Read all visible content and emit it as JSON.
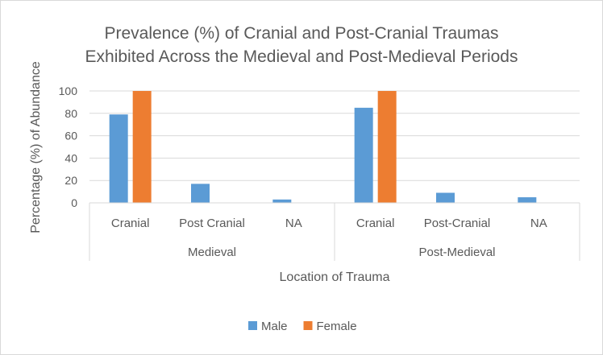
{
  "chart_data": {
    "type": "bar",
    "title_lines": [
      "Prevalence (%) of Cranial and Post-Cranial Traumas",
      "Exhibited Across the Medieval and Post-Medieval Periods"
    ],
    "xlabel": "Location of Trauma",
    "ylabel": "Percentage (%) of Abundance",
    "ylim": [
      0,
      100
    ],
    "yticks": [
      0,
      20,
      40,
      60,
      80,
      100
    ],
    "groups": [
      {
        "name": "Medieval",
        "categories": [
          "Cranial",
          "Post Cranial",
          "NA"
        ]
      },
      {
        "name": "Post-Medieval",
        "categories": [
          "Cranial",
          "Post-Cranial",
          "NA"
        ]
      }
    ],
    "series": [
      {
        "name": "Male",
        "color": "#5b9bd5",
        "values": [
          79,
          17,
          3,
          85,
          9,
          5
        ]
      },
      {
        "name": "Female",
        "color": "#ed7d31",
        "values": [
          100,
          0,
          0,
          100,
          0,
          0
        ]
      }
    ],
    "grid": true,
    "legend_position": "bottom"
  }
}
